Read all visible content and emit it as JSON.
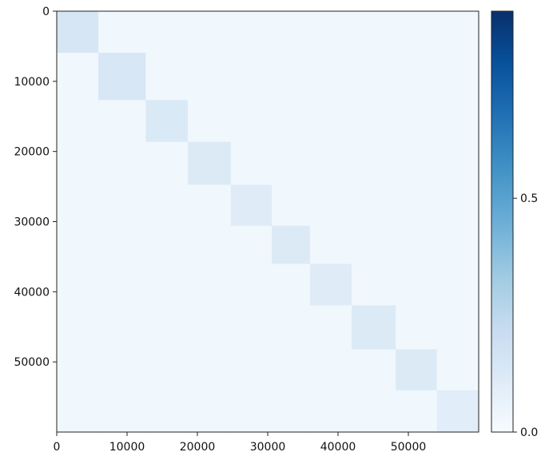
{
  "chart_data": {
    "type": "heatmap",
    "title": "",
    "xlabel": "",
    "ylabel": "",
    "xlim": [
      0,
      60000
    ],
    "ylim": [
      0,
      60000
    ],
    "y_inverted": true,
    "grid": false,
    "colormap": "Blues",
    "x_ticks": [
      0,
      10000,
      20000,
      30000,
      40000,
      50000
    ],
    "x_tick_labels": [
      "0",
      "10000",
      "20000",
      "30000",
      "40000",
      "50000"
    ],
    "y_ticks": [
      0,
      10000,
      20000,
      30000,
      40000,
      50000
    ],
    "y_tick_labels": [
      "0",
      "10000",
      "20000",
      "30000",
      "40000",
      "50000"
    ],
    "block_bounds": [
      0,
      5923,
      12665,
      18623,
      24754,
      30596,
      36017,
      41935,
      48200,
      54051,
      60000
    ],
    "diagonal_values": [
      0.15,
      0.14,
      0.13,
      0.12,
      0.11,
      0.12,
      0.11,
      0.12,
      0.12,
      0.1
    ],
    "off_diagonal_value": 0.03,
    "colorbar": {
      "range": [
        0.0,
        0.9
      ],
      "ticks": [
        0.0,
        0.5
      ],
      "tick_labels": [
        "0.0",
        "0.5"
      ],
      "colors": [
        "#f7fbff",
        "#deebf7",
        "#c6dbef",
        "#9ecae1",
        "#6baed6",
        "#4292c6",
        "#2171b5",
        "#08519c",
        "#08306b"
      ]
    }
  }
}
